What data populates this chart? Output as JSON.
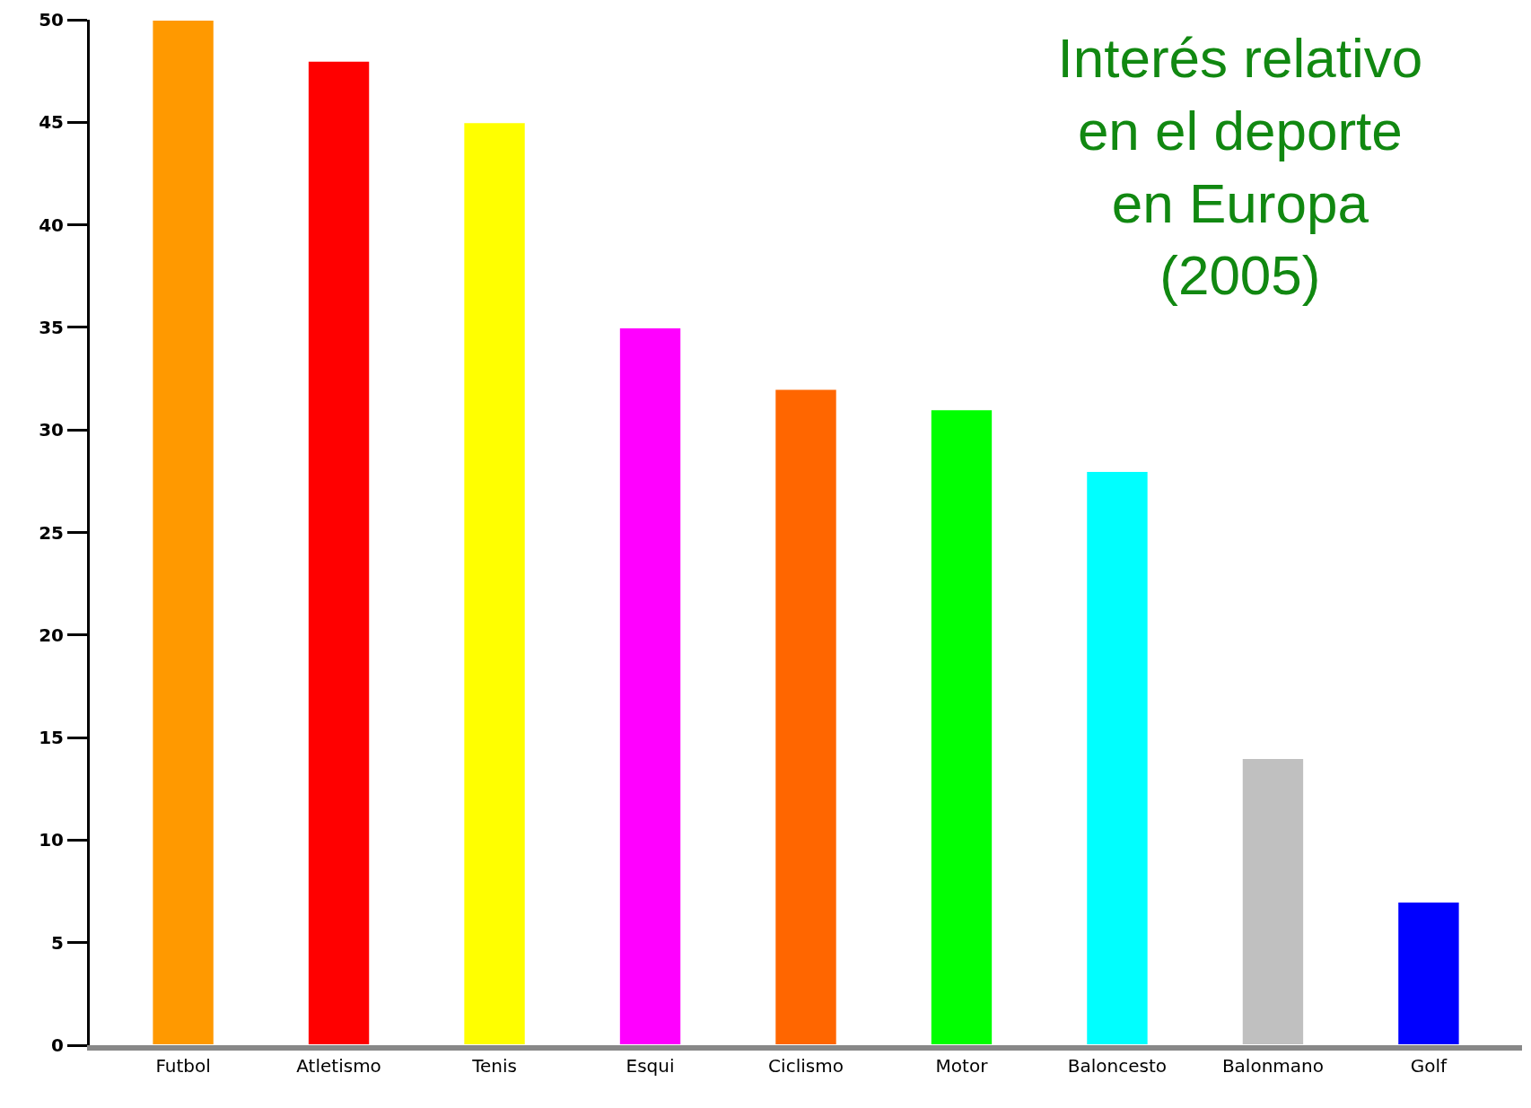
{
  "chart_data": {
    "type": "bar",
    "title": "Interés relativo\nen el deporte\nen Europa\n(2005)",
    "categories": [
      "Futbol",
      "Atletismo",
      "Tenis",
      "Esqui",
      "Ciclismo",
      "Motor",
      "Baloncesto",
      "Balonmano",
      "Golf"
    ],
    "values": [
      50,
      48,
      45,
      35,
      32,
      31,
      28,
      14,
      7
    ],
    "colors": [
      "#ff9900",
      "#ff0000",
      "#ffff00",
      "#ff00ff",
      "#ff6600",
      "#00ff00",
      "#00ffff",
      "#c0c0c0",
      "#0000ff"
    ],
    "ylim": [
      0,
      50
    ],
    "yticks": [
      0,
      5,
      10,
      15,
      20,
      25,
      30,
      35,
      40,
      45,
      50
    ],
    "grid": false
  }
}
